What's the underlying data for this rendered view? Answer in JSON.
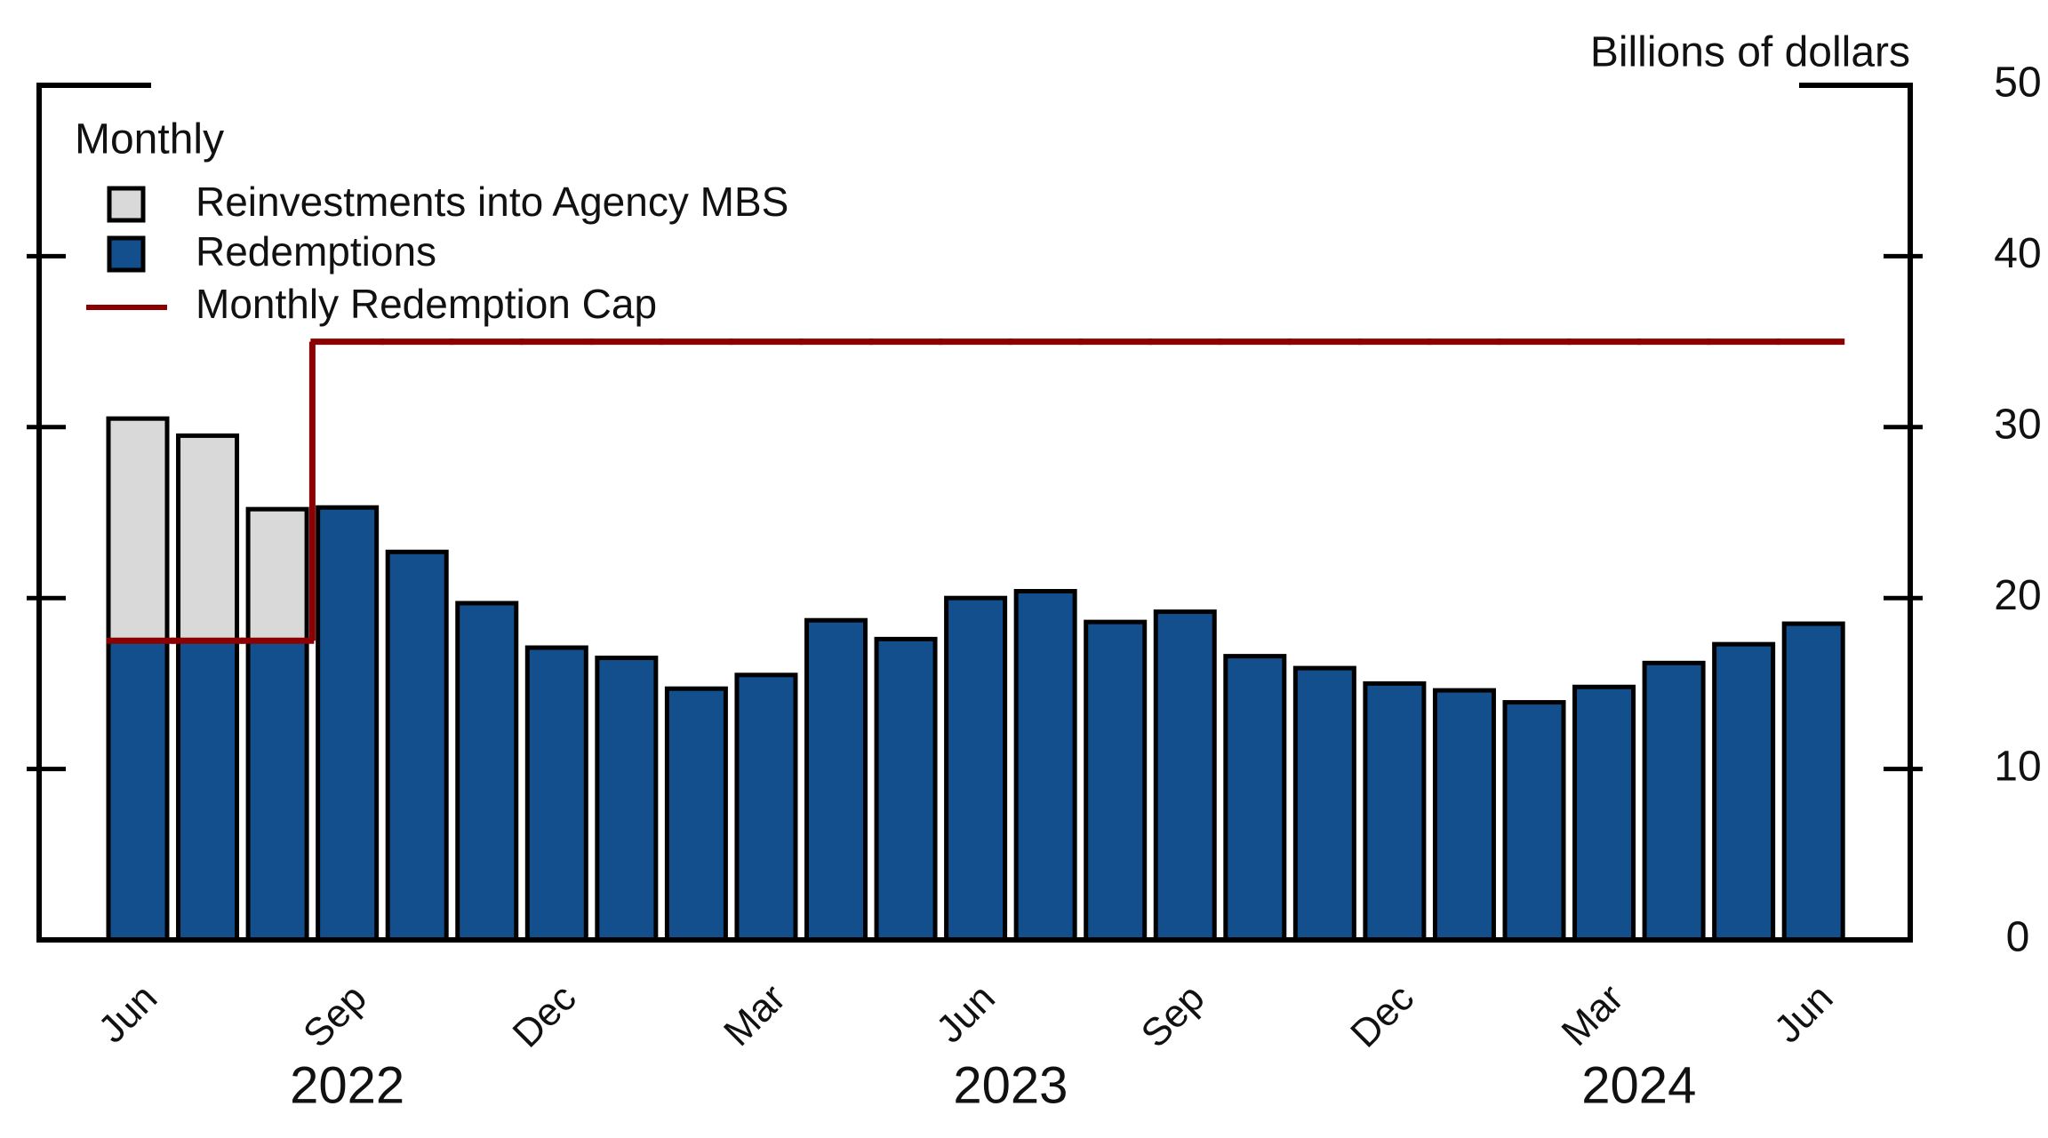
{
  "chart_data": {
    "type": "bar",
    "axis_label": "Billions of dollars",
    "legend_title": "Monthly",
    "categories": [
      "Jun",
      null,
      null,
      "Sep",
      null,
      null,
      "Dec",
      null,
      null,
      "Mar",
      null,
      null,
      "Jun",
      null,
      null,
      "Sep",
      null,
      null,
      "Dec",
      null,
      null,
      "Mar",
      null,
      null,
      "Jun"
    ],
    "year_labels": [
      "2022",
      "2023",
      "2024"
    ],
    "stacked": true,
    "series": [
      {
        "name": "Redemptions",
        "color": "#134f8c",
        "values": [
          17.5,
          17.5,
          17.5,
          25.3,
          22.7,
          19.7,
          17.1,
          16.5,
          14.7,
          15.5,
          18.7,
          17.6,
          20.0,
          20.4,
          18.6,
          19.2,
          16.6,
          15.9,
          15.0,
          14.6,
          13.9,
          14.8,
          16.2,
          17.3,
          18.5
        ]
      },
      {
        "name": "Reinvestments into Agency MBS",
        "color": "#d9d9d9",
        "values": [
          13.0,
          12.0,
          7.7,
          null,
          null,
          null,
          null,
          null,
          null,
          null,
          null,
          null,
          null,
          null,
          null,
          null,
          null,
          null,
          null,
          null,
          null,
          null,
          null,
          null,
          null
        ]
      },
      {
        "name": "Monthly Redemption Cap",
        "color": "#8b0000",
        "type": "step",
        "values": [
          17.5,
          17.5,
          17.5,
          35,
          35,
          35,
          35,
          35,
          35,
          35,
          35,
          35,
          35,
          35,
          35,
          35,
          35,
          35,
          35,
          35,
          35,
          35,
          35,
          35,
          35
        ]
      }
    ],
    "ylim": [
      0,
      50
    ],
    "yticks": [
      0,
      10,
      20,
      30,
      40,
      50
    ]
  }
}
